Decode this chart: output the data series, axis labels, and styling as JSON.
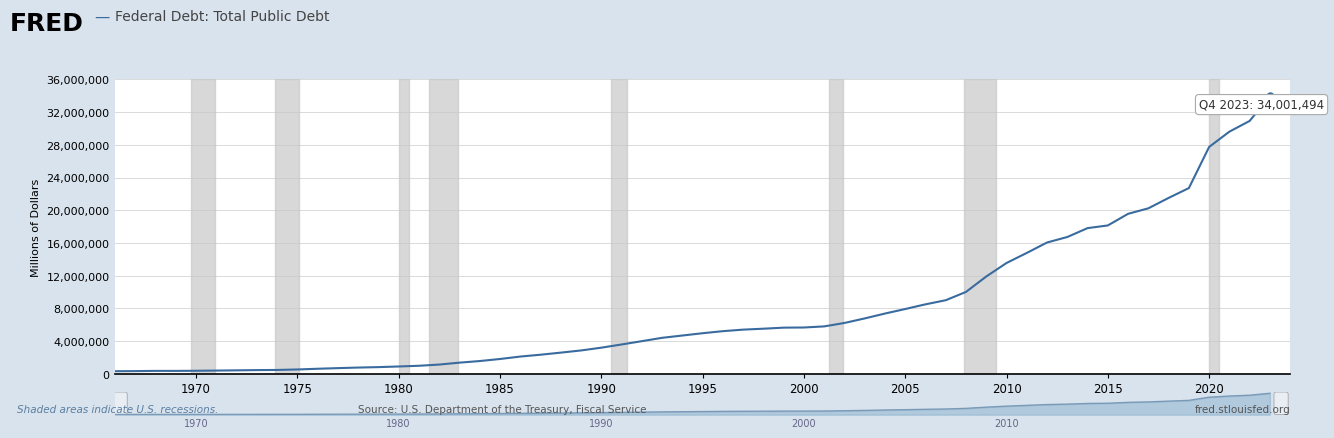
{
  "title": "Federal Debt: Total Public Debt",
  "ylabel": "Millions of Dollars",
  "line_color": "#3a6b9e",
  "background_color": "#d9e3ed",
  "plot_bg_color": "#ffffff",
  "annotation_text": "Q4 2023: 34,001,494",
  "ylim": [
    0,
    36000000
  ],
  "yticks": [
    0,
    4000000,
    8000000,
    12000000,
    16000000,
    20000000,
    24000000,
    28000000,
    32000000,
    36000000
  ],
  "xtick_years": [
    1970,
    1975,
    1980,
    1985,
    1990,
    1995,
    2000,
    2005,
    2010,
    2015,
    2020
  ],
  "recession_bands": [
    [
      1969.75,
      1970.917
    ],
    [
      1973.917,
      1975.083
    ],
    [
      1980.0,
      1980.5
    ],
    [
      1981.5,
      1982.917
    ],
    [
      1990.5,
      1991.25
    ],
    [
      2001.25,
      2001.917
    ],
    [
      2007.917,
      2009.5
    ],
    [
      2020.0,
      2020.5
    ]
  ],
  "fred_logo_text": "FRED",
  "source_text": "Source: U.S. Department of the Treasury, Fiscal Service",
  "website_text": "fred.stlouisfed.org",
  "shaded_note": "Shaded areas indicate U.S. recessions.",
  "data_years": [
    1966,
    1967,
    1968,
    1969,
    1970,
    1971,
    1972,
    1973,
    1974,
    1975,
    1976,
    1977,
    1978,
    1979,
    1980,
    1981,
    1982,
    1983,
    1984,
    1985,
    1986,
    1987,
    1988,
    1989,
    1990,
    1991,
    1992,
    1993,
    1994,
    1995,
    1996,
    1997,
    1998,
    1999,
    2000,
    2001,
    2002,
    2003,
    2004,
    2005,
    2006,
    2007,
    2008,
    2009,
    2010,
    2011,
    2012,
    2013,
    2014,
    2015,
    2016,
    2017,
    2018,
    2019,
    2020,
    2021,
    2022,
    2023
  ],
  "data_values": [
    328506,
    341348,
    369769,
    367141,
    382603,
    408176,
    435936,
    466291,
    483893,
    541925,
    629030,
    706398,
    776602,
    829467,
    907701,
    994845,
    1142034,
    1377210,
    1572266,
    1823103,
    2120629,
    2345956,
    2601307,
    2867500,
    3206564,
    3598178,
    4002136,
    4411488,
    4692749,
    4973982,
    5224811,
    5413146,
    5526193,
    5656270,
    5674178,
    5807463,
    6228236,
    6783231,
    7379052,
    7932709,
    8506973,
    9007653,
    10024725,
    11909829,
    13561623,
    14790340,
    16066241,
    16738184,
    17824071,
    18150617,
    19573444,
    20244900,
    21516058,
    22719401,
    27748061,
    29617397,
    30928911,
    34001494
  ]
}
